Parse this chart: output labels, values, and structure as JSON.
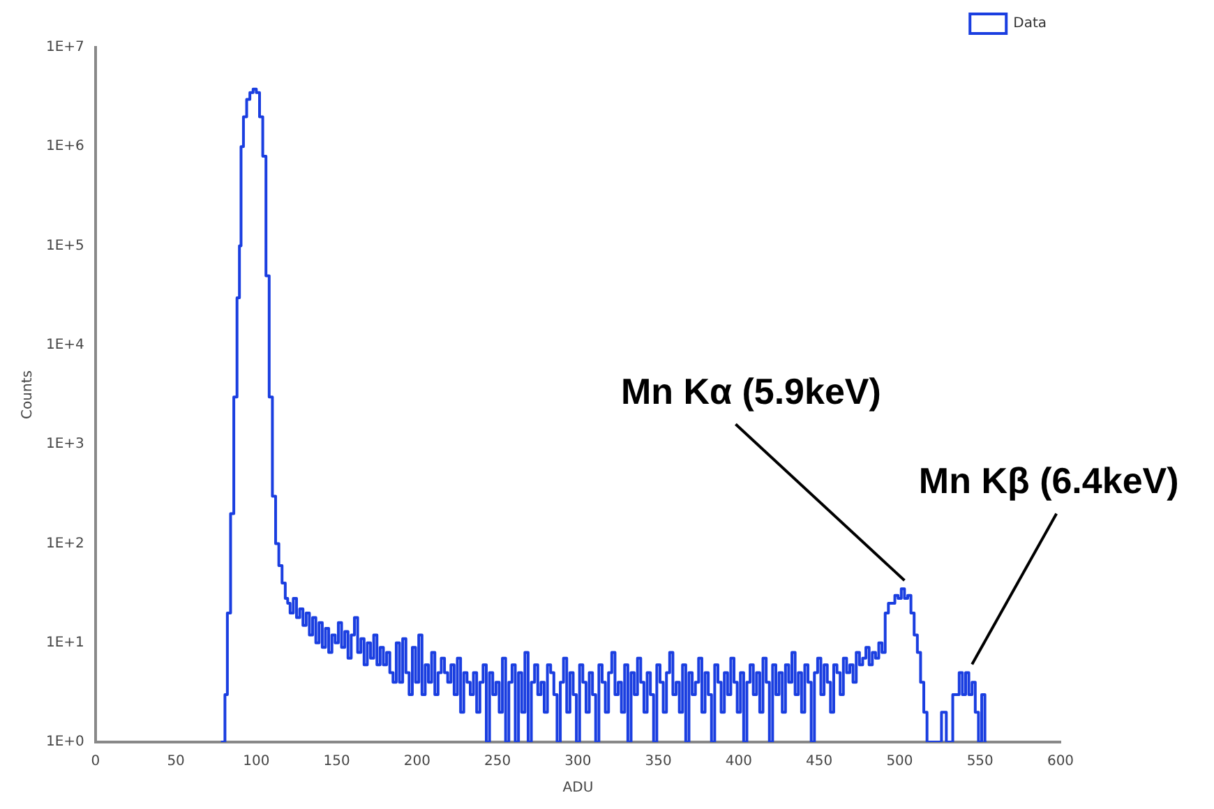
{
  "chart_data": {
    "type": "step",
    "xlabel": "ADU",
    "ylabel": "Counts",
    "xlim": [
      0,
      600
    ],
    "xticks": [
      0,
      50,
      100,
      150,
      200,
      250,
      300,
      350,
      400,
      450,
      500,
      550,
      600
    ],
    "ylim": [
      1,
      10000000
    ],
    "yticks": [
      {
        "value": 1,
        "label": "1E+0"
      },
      {
        "value": 10,
        "label": "1E+1"
      },
      {
        "value": 100,
        "label": "1E+2"
      },
      {
        "value": 1000,
        "label": "1E+3"
      },
      {
        "value": 10000,
        "label": "1E+4"
      },
      {
        "value": 100000,
        "label": "1E+5"
      },
      {
        "value": 1000000,
        "label": "1E+6"
      },
      {
        "value": 10000000,
        "label": "1E+7"
      }
    ],
    "log": "y",
    "grid": false,
    "legend": "top right",
    "marker": "none",
    "line_style": "solid",
    "annotations": [
      {
        "text": "Mn Kα (5.9keV)",
        "x": 503,
        "y": 35
      },
      {
        "text": "Mn Kβ (6.4keV)",
        "x": 545,
        "y": 5
      }
    ],
    "series": [
      {
        "name": "Data",
        "color": "#1a3ee0",
        "x": [
          78,
          80,
          81,
          83,
          85,
          87,
          89,
          90,
          91,
          93,
          95,
          97,
          99,
          101,
          103,
          105,
          107,
          109,
          111,
          113,
          115,
          117,
          119,
          120,
          122,
          124,
          126,
          128,
          130,
          132,
          134,
          136,
          138,
          140,
          142,
          144,
          146,
          148,
          150,
          152,
          154,
          156,
          158,
          160,
          162,
          164,
          166,
          168,
          170,
          172,
          174,
          176,
          178,
          180,
          182,
          184,
          186,
          188,
          190,
          192,
          194,
          196,
          198,
          200,
          202,
          204,
          206,
          208,
          210,
          212,
          214,
          216,
          218,
          220,
          222,
          224,
          226,
          228,
          230,
          232,
          234,
          236,
          238,
          240,
          242,
          244,
          246,
          248,
          250,
          252,
          254,
          256,
          258,
          260,
          262,
          264,
          266,
          268,
          270,
          272,
          274,
          276,
          278,
          280,
          282,
          284,
          286,
          288,
          290,
          292,
          294,
          296,
          298,
          300,
          302,
          304,
          306,
          308,
          310,
          312,
          314,
          316,
          318,
          320,
          322,
          324,
          326,
          328,
          330,
          332,
          334,
          336,
          338,
          340,
          342,
          344,
          346,
          348,
          350,
          352,
          354,
          356,
          358,
          360,
          362,
          364,
          366,
          368,
          370,
          372,
          374,
          376,
          378,
          380,
          382,
          384,
          386,
          388,
          390,
          392,
          394,
          396,
          398,
          400,
          402,
          404,
          406,
          408,
          410,
          412,
          414,
          416,
          418,
          420,
          422,
          424,
          426,
          428,
          430,
          432,
          434,
          436,
          438,
          440,
          442,
          444,
          446,
          448,
          450,
          452,
          454,
          456,
          458,
          460,
          462,
          464,
          466,
          468,
          470,
          472,
          474,
          476,
          478,
          480,
          482,
          484,
          486,
          488,
          490,
          492,
          494,
          496,
          498,
          500,
          502,
          504,
          506,
          508,
          510,
          512,
          514,
          516,
          518,
          522,
          524,
          528,
          530,
          532,
          534,
          536,
          538,
          540,
          542,
          544,
          546,
          548,
          550,
          552,
          554
        ],
        "values": [
          1,
          1,
          3,
          20,
          200,
          3000,
          30000,
          100000,
          1000000,
          2000000,
          3000000,
          3500000,
          3800000,
          3500000,
          2000000,
          800000,
          50000,
          3000,
          300,
          100,
          60,
          40,
          28,
          25,
          20,
          28,
          18,
          22,
          15,
          20,
          12,
          18,
          10,
          16,
          9,
          14,
          8,
          12,
          10,
          16,
          9,
          13,
          7,
          12,
          18,
          8,
          11,
          6,
          10,
          7,
          12,
          6,
          9,
          6,
          8,
          5,
          4,
          10,
          4,
          11,
          5,
          3,
          9,
          4,
          12,
          3,
          6,
          4,
          8,
          3,
          5,
          7,
          5,
          4,
          6,
          3,
          7,
          2,
          5,
          4,
          3,
          5,
          2,
          4,
          6,
          1,
          5,
          3,
          4,
          2,
          7,
          1,
          4,
          6,
          1,
          5,
          2,
          8,
          1,
          4,
          6,
          3,
          4,
          2,
          6,
          5,
          3,
          1,
          4,
          7,
          2,
          5,
          3,
          1,
          6,
          4,
          2,
          5,
          3,
          1,
          6,
          4,
          2,
          5,
          8,
          3,
          4,
          2,
          6,
          1,
          5,
          3,
          7,
          4,
          2,
          5,
          3,
          1,
          6,
          4,
          2,
          5,
          8,
          3,
          4,
          2,
          6,
          1,
          5,
          3,
          4,
          7,
          2,
          5,
          3,
          1,
          6,
          4,
          2,
          5,
          3,
          7,
          4,
          2,
          5,
          1,
          4,
          6,
          3,
          5,
          2,
          7,
          4,
          1,
          6,
          3,
          5,
          2,
          6,
          4,
          8,
          3,
          5,
          2,
          6,
          4,
          1,
          5,
          7,
          3,
          6,
          4,
          2,
          6,
          5,
          3,
          7,
          5,
          6,
          4,
          8,
          6,
          7,
          9,
          6,
          8,
          7,
          10,
          8,
          20,
          25,
          25,
          30,
          28,
          35,
          28,
          30,
          20,
          12,
          8,
          4,
          2,
          1,
          1,
          1,
          2,
          1,
          1,
          3,
          3,
          5,
          3,
          5,
          3,
          4,
          2,
          1,
          3,
          1
        ]
      }
    ]
  }
}
